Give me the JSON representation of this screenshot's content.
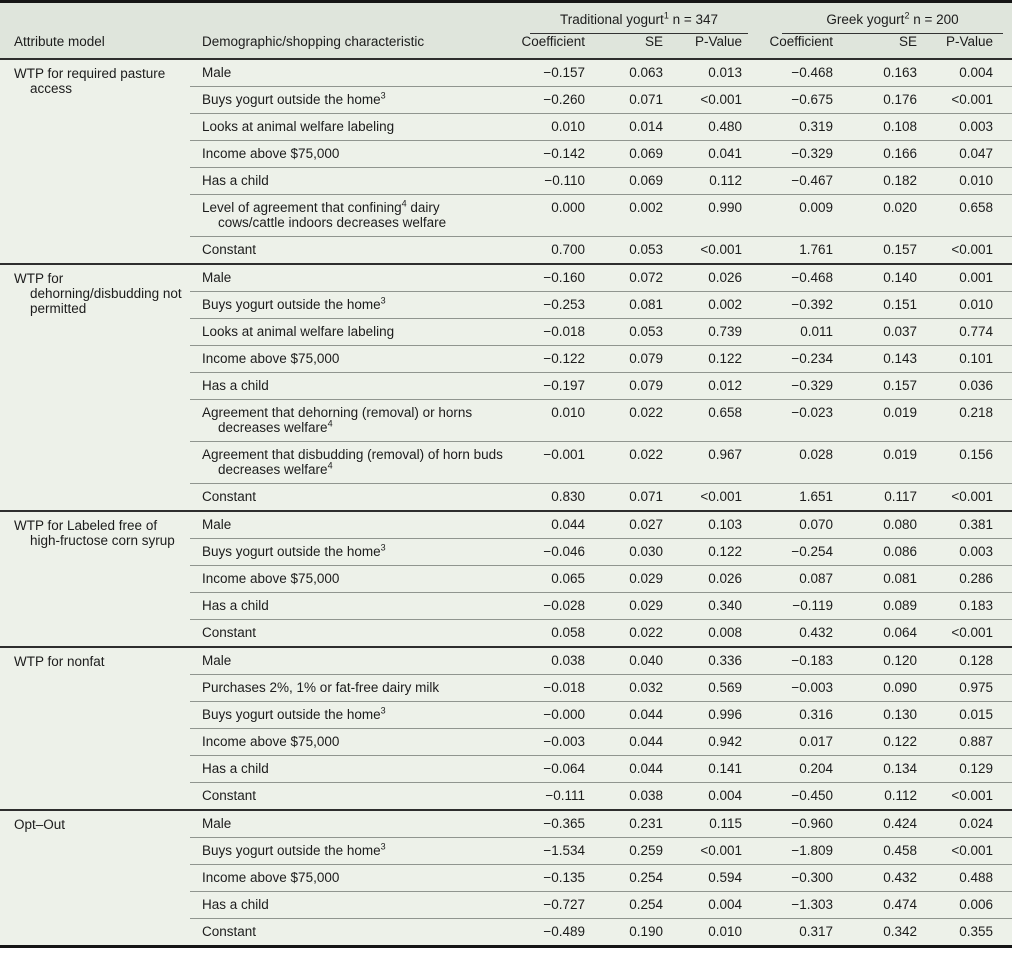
{
  "colors": {
    "header_bg": "#dfe5dc",
    "body_bg": "#edf1e9",
    "rule_dark": "#2e2e2e",
    "rule_light": "#90958f",
    "frame": "#151515",
    "text": "#1c1c1c"
  },
  "table": {
    "header": {
      "col1": "Attribute model",
      "col2": "Demographic/shopping characteristic",
      "groups": [
        {
          "label": [
            {
              "t": "Traditional yogurt"
            },
            {
              "t": "1",
              "sup": true
            },
            {
              "t": " n = 347"
            }
          ],
          "columns": [
            "Coefficient",
            "SE",
            "P-Value"
          ]
        },
        {
          "label": [
            {
              "t": "Greek yogurt"
            },
            {
              "t": "2",
              "sup": true
            },
            {
              "t": " n = 200"
            }
          ],
          "columns": [
            "Coefficient",
            "SE",
            "P-Value"
          ]
        }
      ]
    },
    "sections": [
      {
        "attribute_model": "WTP for required pasture access",
        "rows": [
          {
            "label": [
              {
                "t": "Male"
              }
            ],
            "values": [
              "−0.157",
              "0.063",
              "0.013",
              "−0.468",
              "0.163",
              "0.004"
            ]
          },
          {
            "label": [
              {
                "t": "Buys yogurt outside the home"
              },
              {
                "t": "3",
                "sup": true
              }
            ],
            "values": [
              "−0.260",
              "0.071",
              "<0.001",
              "−0.675",
              "0.176",
              "<0.001"
            ]
          },
          {
            "label": [
              {
                "t": "Looks at animal welfare labeling"
              }
            ],
            "values": [
              "0.010",
              "0.014",
              "0.480",
              "0.319",
              "0.108",
              "0.003"
            ]
          },
          {
            "label": [
              {
                "t": "Income above $75,000"
              }
            ],
            "values": [
              "−0.142",
              "0.069",
              "0.041",
              "−0.329",
              "0.166",
              "0.047"
            ]
          },
          {
            "label": [
              {
                "t": "Has a child"
              }
            ],
            "values": [
              "−0.110",
              "0.069",
              "0.112",
              "−0.467",
              "0.182",
              "0.010"
            ]
          },
          {
            "label": [
              {
                "t": "Level of agreement that confining"
              },
              {
                "t": "4",
                "sup": true
              },
              {
                "t": " dairy cows/cattle indoors decreases welfare"
              }
            ],
            "values": [
              "0.000",
              "0.002",
              "0.990",
              "0.009",
              "0.020",
              "0.658"
            ]
          },
          {
            "label": [
              {
                "t": "Constant"
              }
            ],
            "values": [
              "0.700",
              "0.053",
              "<0.001",
              "1.761",
              "0.157",
              "<0.001"
            ]
          }
        ]
      },
      {
        "attribute_model": "WTP for dehorning/disbudding not permitted",
        "rows": [
          {
            "label": [
              {
                "t": "Male"
              }
            ],
            "values": [
              "−0.160",
              "0.072",
              "0.026",
              "−0.468",
              "0.140",
              "0.001"
            ]
          },
          {
            "label": [
              {
                "t": "Buys yogurt outside the home"
              },
              {
                "t": "3",
                "sup": true
              }
            ],
            "values": [
              "−0.253",
              "0.081",
              "0.002",
              "−0.392",
              "0.151",
              "0.010"
            ]
          },
          {
            "label": [
              {
                "t": "Looks at animal welfare labeling"
              }
            ],
            "values": [
              "−0.018",
              "0.053",
              "0.739",
              "0.011",
              "0.037",
              "0.774"
            ]
          },
          {
            "label": [
              {
                "t": "Income above $75,000"
              }
            ],
            "values": [
              "−0.122",
              "0.079",
              "0.122",
              "−0.234",
              "0.143",
              "0.101"
            ]
          },
          {
            "label": [
              {
                "t": "Has a child"
              }
            ],
            "values": [
              "−0.197",
              "0.079",
              "0.012",
              "−0.329",
              "0.157",
              "0.036"
            ]
          },
          {
            "label": [
              {
                "t": "Agreement that dehorning (removal) or horns decreases welfare"
              },
              {
                "t": "4",
                "sup": true
              }
            ],
            "values": [
              "0.010",
              "0.022",
              "0.658",
              "−0.023",
              "0.019",
              "0.218"
            ]
          },
          {
            "label": [
              {
                "t": "Agreement that disbudding (removal) of horn buds decreases welfare"
              },
              {
                "t": "4",
                "sup": true
              }
            ],
            "values": [
              "−0.001",
              "0.022",
              "0.967",
              "0.028",
              "0.019",
              "0.156"
            ]
          },
          {
            "label": [
              {
                "t": "Constant"
              }
            ],
            "values": [
              "0.830",
              "0.071",
              "<0.001",
              "1.651",
              "0.117",
              "<0.001"
            ]
          }
        ]
      },
      {
        "attribute_model": "WTP for Labeled free of high-fructose corn syrup",
        "rows": [
          {
            "label": [
              {
                "t": "Male"
              }
            ],
            "values": [
              "0.044",
              "0.027",
              "0.103",
              "0.070",
              "0.080",
              "0.381"
            ]
          },
          {
            "label": [
              {
                "t": "Buys yogurt outside the home"
              },
              {
                "t": "3",
                "sup": true
              }
            ],
            "values": [
              "−0.046",
              "0.030",
              "0.122",
              "−0.254",
              "0.086",
              "0.003"
            ]
          },
          {
            "label": [
              {
                "t": "Income above $75,000"
              }
            ],
            "values": [
              "0.065",
              "0.029",
              "0.026",
              "0.087",
              "0.081",
              "0.286"
            ]
          },
          {
            "label": [
              {
                "t": "Has a child"
              }
            ],
            "values": [
              "−0.028",
              "0.029",
              "0.340",
              "−0.119",
              "0.089",
              "0.183"
            ]
          },
          {
            "label": [
              {
                "t": "Constant"
              }
            ],
            "values": [
              "0.058",
              "0.022",
              "0.008",
              "0.432",
              "0.064",
              "<0.001"
            ]
          }
        ]
      },
      {
        "attribute_model": "WTP for nonfat",
        "rows": [
          {
            "label": [
              {
                "t": "Male"
              }
            ],
            "values": [
              "0.038",
              "0.040",
              "0.336",
              "−0.183",
              "0.120",
              "0.128"
            ]
          },
          {
            "label": [
              {
                "t": "Purchases 2%, 1% or fat-free dairy milk"
              }
            ],
            "values": [
              "−0.018",
              "0.032",
              "0.569",
              "−0.003",
              "0.090",
              "0.975"
            ]
          },
          {
            "label": [
              {
                "t": "Buys yogurt outside the home"
              },
              {
                "t": "3",
                "sup": true
              }
            ],
            "values": [
              "−0.000",
              "0.044",
              "0.996",
              "0.316",
              "0.130",
              "0.015"
            ]
          },
          {
            "label": [
              {
                "t": "Income above $75,000"
              }
            ],
            "values": [
              "−0.003",
              "0.044",
              "0.942",
              "0.017",
              "0.122",
              "0.887"
            ]
          },
          {
            "label": [
              {
                "t": "Has a child"
              }
            ],
            "values": [
              "−0.064",
              "0.044",
              "0.141",
              "0.204",
              "0.134",
              "0.129"
            ]
          },
          {
            "label": [
              {
                "t": "Constant"
              }
            ],
            "values": [
              "−0.111",
              "0.038",
              "0.004",
              "−0.450",
              "0.112",
              "<0.001"
            ]
          }
        ]
      },
      {
        "attribute_model": "Opt–Out",
        "rows": [
          {
            "label": [
              {
                "t": "Male"
              }
            ],
            "values": [
              "−0.365",
              "0.231",
              "0.115",
              "−0.960",
              "0.424",
              "0.024"
            ]
          },
          {
            "label": [
              {
                "t": "Buys yogurt outside the home"
              },
              {
                "t": "3",
                "sup": true
              }
            ],
            "values": [
              "−1.534",
              "0.259",
              "<0.001",
              "−1.809",
              "0.458",
              "<0.001"
            ]
          },
          {
            "label": [
              {
                "t": "Income above $75,000"
              }
            ],
            "values": [
              "−0.135",
              "0.254",
              "0.594",
              "−0.300",
              "0.432",
              "0.488"
            ]
          },
          {
            "label": [
              {
                "t": "Has a child"
              }
            ],
            "values": [
              "−0.727",
              "0.254",
              "0.004",
              "−1.303",
              "0.474",
              "0.006"
            ]
          },
          {
            "label": [
              {
                "t": "Constant"
              }
            ],
            "values": [
              "−0.489",
              "0.190",
              "0.010",
              "0.317",
              "0.342",
              "0.355"
            ]
          }
        ]
      }
    ]
  }
}
